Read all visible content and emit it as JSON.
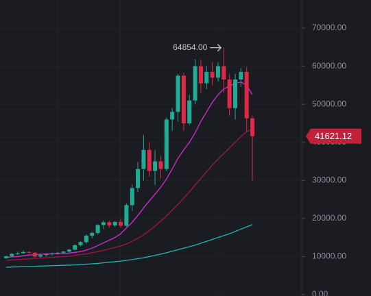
{
  "chart_data": {
    "type": "candlestick",
    "open": [
      9600,
      10100,
      10700,
      10900,
      11200,
      11000,
      10000,
      10400,
      10600,
      10800,
      11000,
      11300,
      11800,
      13000,
      13800,
      15500,
      16200,
      18300,
      19000,
      18200,
      19100,
      18100,
      23500,
      28000,
      33000,
      38000,
      32500,
      35000,
      33000,
      46000,
      48000,
      57500,
      45000,
      51000,
      60000,
      55500,
      58500,
      57000,
      60000,
      56500,
      49000,
      56500,
      58500,
      46300
    ],
    "high": [
      10200,
      10900,
      11300,
      11600,
      11400,
      11200,
      10800,
      10700,
      11000,
      11200,
      11500,
      12000,
      13200,
      14000,
      15800,
      16500,
      18500,
      19500,
      19400,
      19300,
      19900,
      24000,
      29000,
      34800,
      41900,
      40000,
      38000,
      36500,
      46500,
      49000,
      58000,
      58300,
      52500,
      61800,
      61700,
      60000,
      61000,
      61000,
      64854,
      58000,
      58000,
      59500,
      59800,
      47000
    ],
    "low": [
      9400,
      9900,
      10400,
      10700,
      10800,
      9800,
      9700,
      10000,
      10300,
      10500,
      10800,
      11000,
      11600,
      12700,
      13400,
      14800,
      15800,
      17200,
      17600,
      17800,
      17600,
      17800,
      22000,
      27000,
      30000,
      31000,
      28800,
      30500,
      32500,
      43000,
      45500,
      43000,
      44500,
      50000,
      53000,
      54000,
      55000,
      56000,
      53000,
      47000,
      46000,
      54500,
      43000,
      30000
    ],
    "close": [
      10100,
      10700,
      10900,
      11200,
      11000,
      10000,
      10400,
      10600,
      10800,
      11000,
      11300,
      11800,
      13000,
      13800,
      15500,
      16200,
      18300,
      19000,
      18200,
      19100,
      18100,
      23500,
      28000,
      33000,
      38000,
      32500,
      35000,
      33000,
      46000,
      48000,
      57500,
      45000,
      51000,
      60000,
      55500,
      58500,
      57000,
      60000,
      56500,
      49000,
      56500,
      58500,
      46300,
      41621.12
    ],
    "up_color": "#22ab94",
    "down_color": "#e0294a",
    "lines": [
      {
        "color": "#d42cd4",
        "values": [
          9800,
          9900,
          10000,
          10200,
          10400,
          10500,
          10600,
          10700,
          10700,
          10800,
          10800,
          10900,
          11100,
          11300,
          11700,
          12200,
          12900,
          13600,
          14300,
          15000,
          16000,
          17500,
          19000,
          20800,
          22800,
          24600,
          26400,
          28200,
          30400,
          33000,
          35800,
          38000,
          40000,
          42500,
          45500,
          48000,
          50500,
          52500,
          54000,
          54800,
          55500,
          55800,
          55000,
          52500
        ]
      },
      {
        "color": "#a3144d",
        "values": [
          9000,
          9100,
          9200,
          9300,
          9400,
          9500,
          9600,
          9700,
          9800,
          9900,
          10000,
          10100,
          10300,
          10500,
          10700,
          11000,
          11300,
          11600,
          12000,
          12400,
          12800,
          13300,
          14000,
          14800,
          15700,
          16800,
          18000,
          19300,
          20700,
          22200,
          23700,
          25300,
          27000,
          28800,
          30500,
          32300,
          34000,
          35600,
          37000,
          38500,
          40000,
          41500,
          42800,
          43500
        ]
      },
      {
        "color": "#1fb5b5",
        "values": [
          7200,
          7250,
          7300,
          7350,
          7400,
          7450,
          7500,
          7550,
          7600,
          7650,
          7700,
          7750,
          7800,
          7900,
          8000,
          8100,
          8200,
          8350,
          8500,
          8650,
          8800,
          9000,
          9200,
          9450,
          9700,
          10000,
          10300,
          10650,
          11000,
          11400,
          11800,
          12200,
          12600,
          13000,
          13500,
          14000,
          14500,
          15000,
          15500,
          16000,
          16600,
          17200,
          17800,
          18400
        ]
      }
    ],
    "high_marker": {
      "value": 64854,
      "label": "64854.00"
    },
    "ylim": [
      -360,
      77380
    ],
    "yticks": [
      {
        "value": 0,
        "label": "0.00"
      },
      {
        "value": 10000,
        "label": "10000.00"
      },
      {
        "value": 20000,
        "label": "20000.00"
      },
      {
        "value": 30000,
        "label": "30000.00"
      },
      {
        "value": 40000,
        "label": "40000.00"
      },
      {
        "value": 50000,
        "label": "50000.00"
      },
      {
        "value": 60000,
        "label": "60000.00"
      },
      {
        "value": 70000,
        "label": "70000.00"
      }
    ],
    "grid": true
  }
}
